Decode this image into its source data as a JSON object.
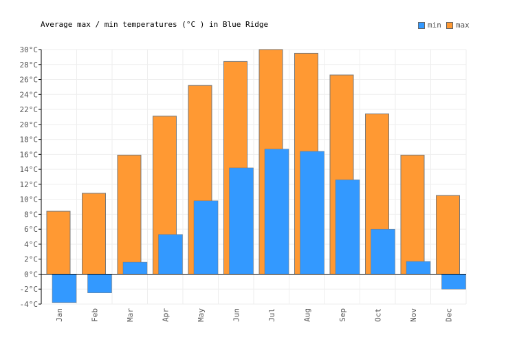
{
  "chart_data": {
    "type": "bar",
    "title": "Average max / min temperatures (°C ) in Blue Ridge",
    "categories": [
      "Jan",
      "Feb",
      "Mar",
      "Apr",
      "May",
      "Jun",
      "Jul",
      "Aug",
      "Sep",
      "Oct",
      "Nov",
      "Dec"
    ],
    "series": [
      {
        "name": "min",
        "color": "#3399ff",
        "values": [
          -3.8,
          -2.5,
          1.6,
          5.3,
          9.8,
          14.2,
          16.7,
          16.4,
          12.6,
          6.0,
          1.7,
          -2.0
        ]
      },
      {
        "name": "max",
        "color": "#ff9933",
        "values": [
          8.4,
          10.8,
          15.9,
          21.1,
          25.2,
          28.4,
          30.0,
          29.5,
          26.6,
          21.4,
          15.9,
          10.5
        ]
      }
    ],
    "ylim": [
      -4,
      30
    ],
    "yticks": [
      "-4°C",
      "-2°C",
      "0°C",
      "2°C",
      "4°C",
      "6°C",
      "8°C",
      "10°C",
      "12°C",
      "14°C",
      "16°C",
      "18°C",
      "20°C",
      "22°C",
      "24°C",
      "26°C",
      "28°C",
      "30°C"
    ],
    "grid": true,
    "legend": "top-right"
  }
}
